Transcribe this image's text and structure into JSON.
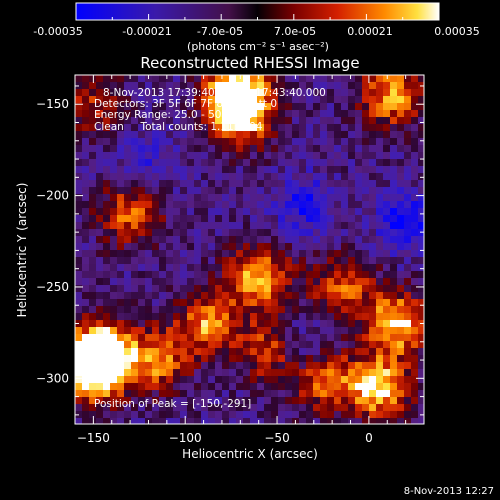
{
  "colorbar": {
    "ticks": [
      "-0.00035",
      "-0.00021",
      "-7.0e-05",
      "7.0e-05",
      "0.00021",
      "0.00035"
    ],
    "unit_label": "(photons cm⁻² s⁻¹ asec⁻²)",
    "range": [
      -0.00035,
      0.00035
    ]
  },
  "chart_data": {
    "type": "heatmap",
    "title": "Reconstructed RHESSI Image",
    "xlabel": "Heliocentric X (arcsec)",
    "ylabel": "Heliocentric Y (arcsec)",
    "xlim": [
      -160,
      30
    ],
    "ylim": [
      -325,
      -134
    ],
    "x_ticks": [
      -150,
      -100,
      -50,
      0
    ],
    "x_tick_labels": [
      "−150",
      "−100",
      "−50",
      "0"
    ],
    "y_ticks": [
      -300,
      -250,
      -200,
      -150
    ],
    "y_tick_labels": [
      "−300",
      "−250",
      "−200",
      "−150"
    ],
    "colormap": "hot-blue (RHESSI)",
    "annotations": [
      "8-Nov-2013 17:39:40.000 to 17:43:40.000",
      "Detectors: 3F 5F 6F 7F 8F 9F, Att 0",
      "Energy Range: 25.0 - 50.0 keV",
      "Clean     Total counts: 1.11E+04"
    ],
    "peak_label": "Position of Peak = [-150,-291]",
    "peak_position": [
      -150,
      -291
    ],
    "bright_features": [
      {
        "x": -150,
        "y": -295,
        "strength": 1.0
      },
      {
        "x": -145,
        "y": -285,
        "strength": 0.85
      },
      {
        "x": -70,
        "y": -155,
        "strength": 0.9
      },
      {
        "x": -72,
        "y": -140,
        "strength": 0.75
      },
      {
        "x": 12,
        "y": -145,
        "strength": 0.7
      },
      {
        "x": 15,
        "y": -270,
        "strength": 0.8
      },
      {
        "x": 5,
        "y": -305,
        "strength": 0.85
      },
      {
        "x": -25,
        "y": -300,
        "strength": 0.6
      },
      {
        "x": -60,
        "y": -245,
        "strength": 0.75
      },
      {
        "x": -88,
        "y": -270,
        "strength": 0.65
      },
      {
        "x": -115,
        "y": -290,
        "strength": 0.6
      },
      {
        "x": -130,
        "y": -210,
        "strength": 0.55
      },
      {
        "x": -55,
        "y": -285,
        "strength": 0.5
      },
      {
        "x": -15,
        "y": -250,
        "strength": 0.55
      },
      {
        "x": -150,
        "y": -150,
        "strength": 0.4
      }
    ],
    "dim_features": [
      {
        "x": 20,
        "y": -215,
        "strength": 0.8
      },
      {
        "x": -35,
        "y": -205,
        "strength": 0.6
      },
      {
        "x": -120,
        "y": -180,
        "strength": 0.4
      },
      {
        "x": -35,
        "y": -285,
        "strength": 0.5
      }
    ]
  },
  "timestamp": "8-Nov-2013 12:27"
}
